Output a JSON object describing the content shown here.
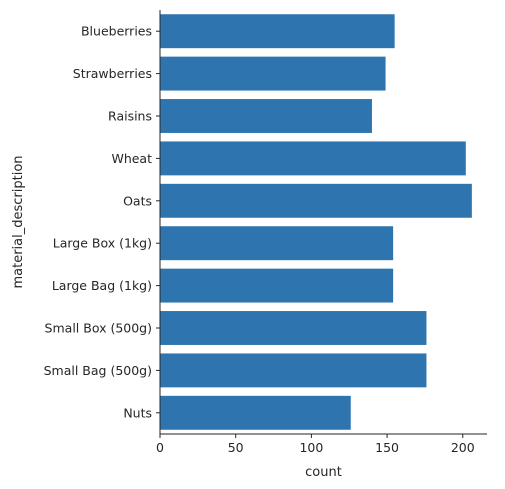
{
  "chart_data": {
    "type": "bar",
    "orientation": "horizontal",
    "categories": [
      "Blueberries",
      "Strawberries",
      "Raisins",
      "Wheat",
      "Oats",
      "Large Box (1kg)",
      "Large Bag (1kg)",
      "Small Box (500g)",
      "Small Bag (500g)",
      "Nuts"
    ],
    "values": [
      155,
      149,
      140,
      202,
      206,
      154,
      154,
      176,
      176,
      126
    ],
    "xlabel": "count",
    "ylabel": "material_description",
    "xlim": [
      0,
      216
    ],
    "xticks": [
      0,
      50,
      100,
      150,
      200
    ],
    "bar_color": "#2e75b0",
    "grid": false,
    "legend": "none"
  }
}
